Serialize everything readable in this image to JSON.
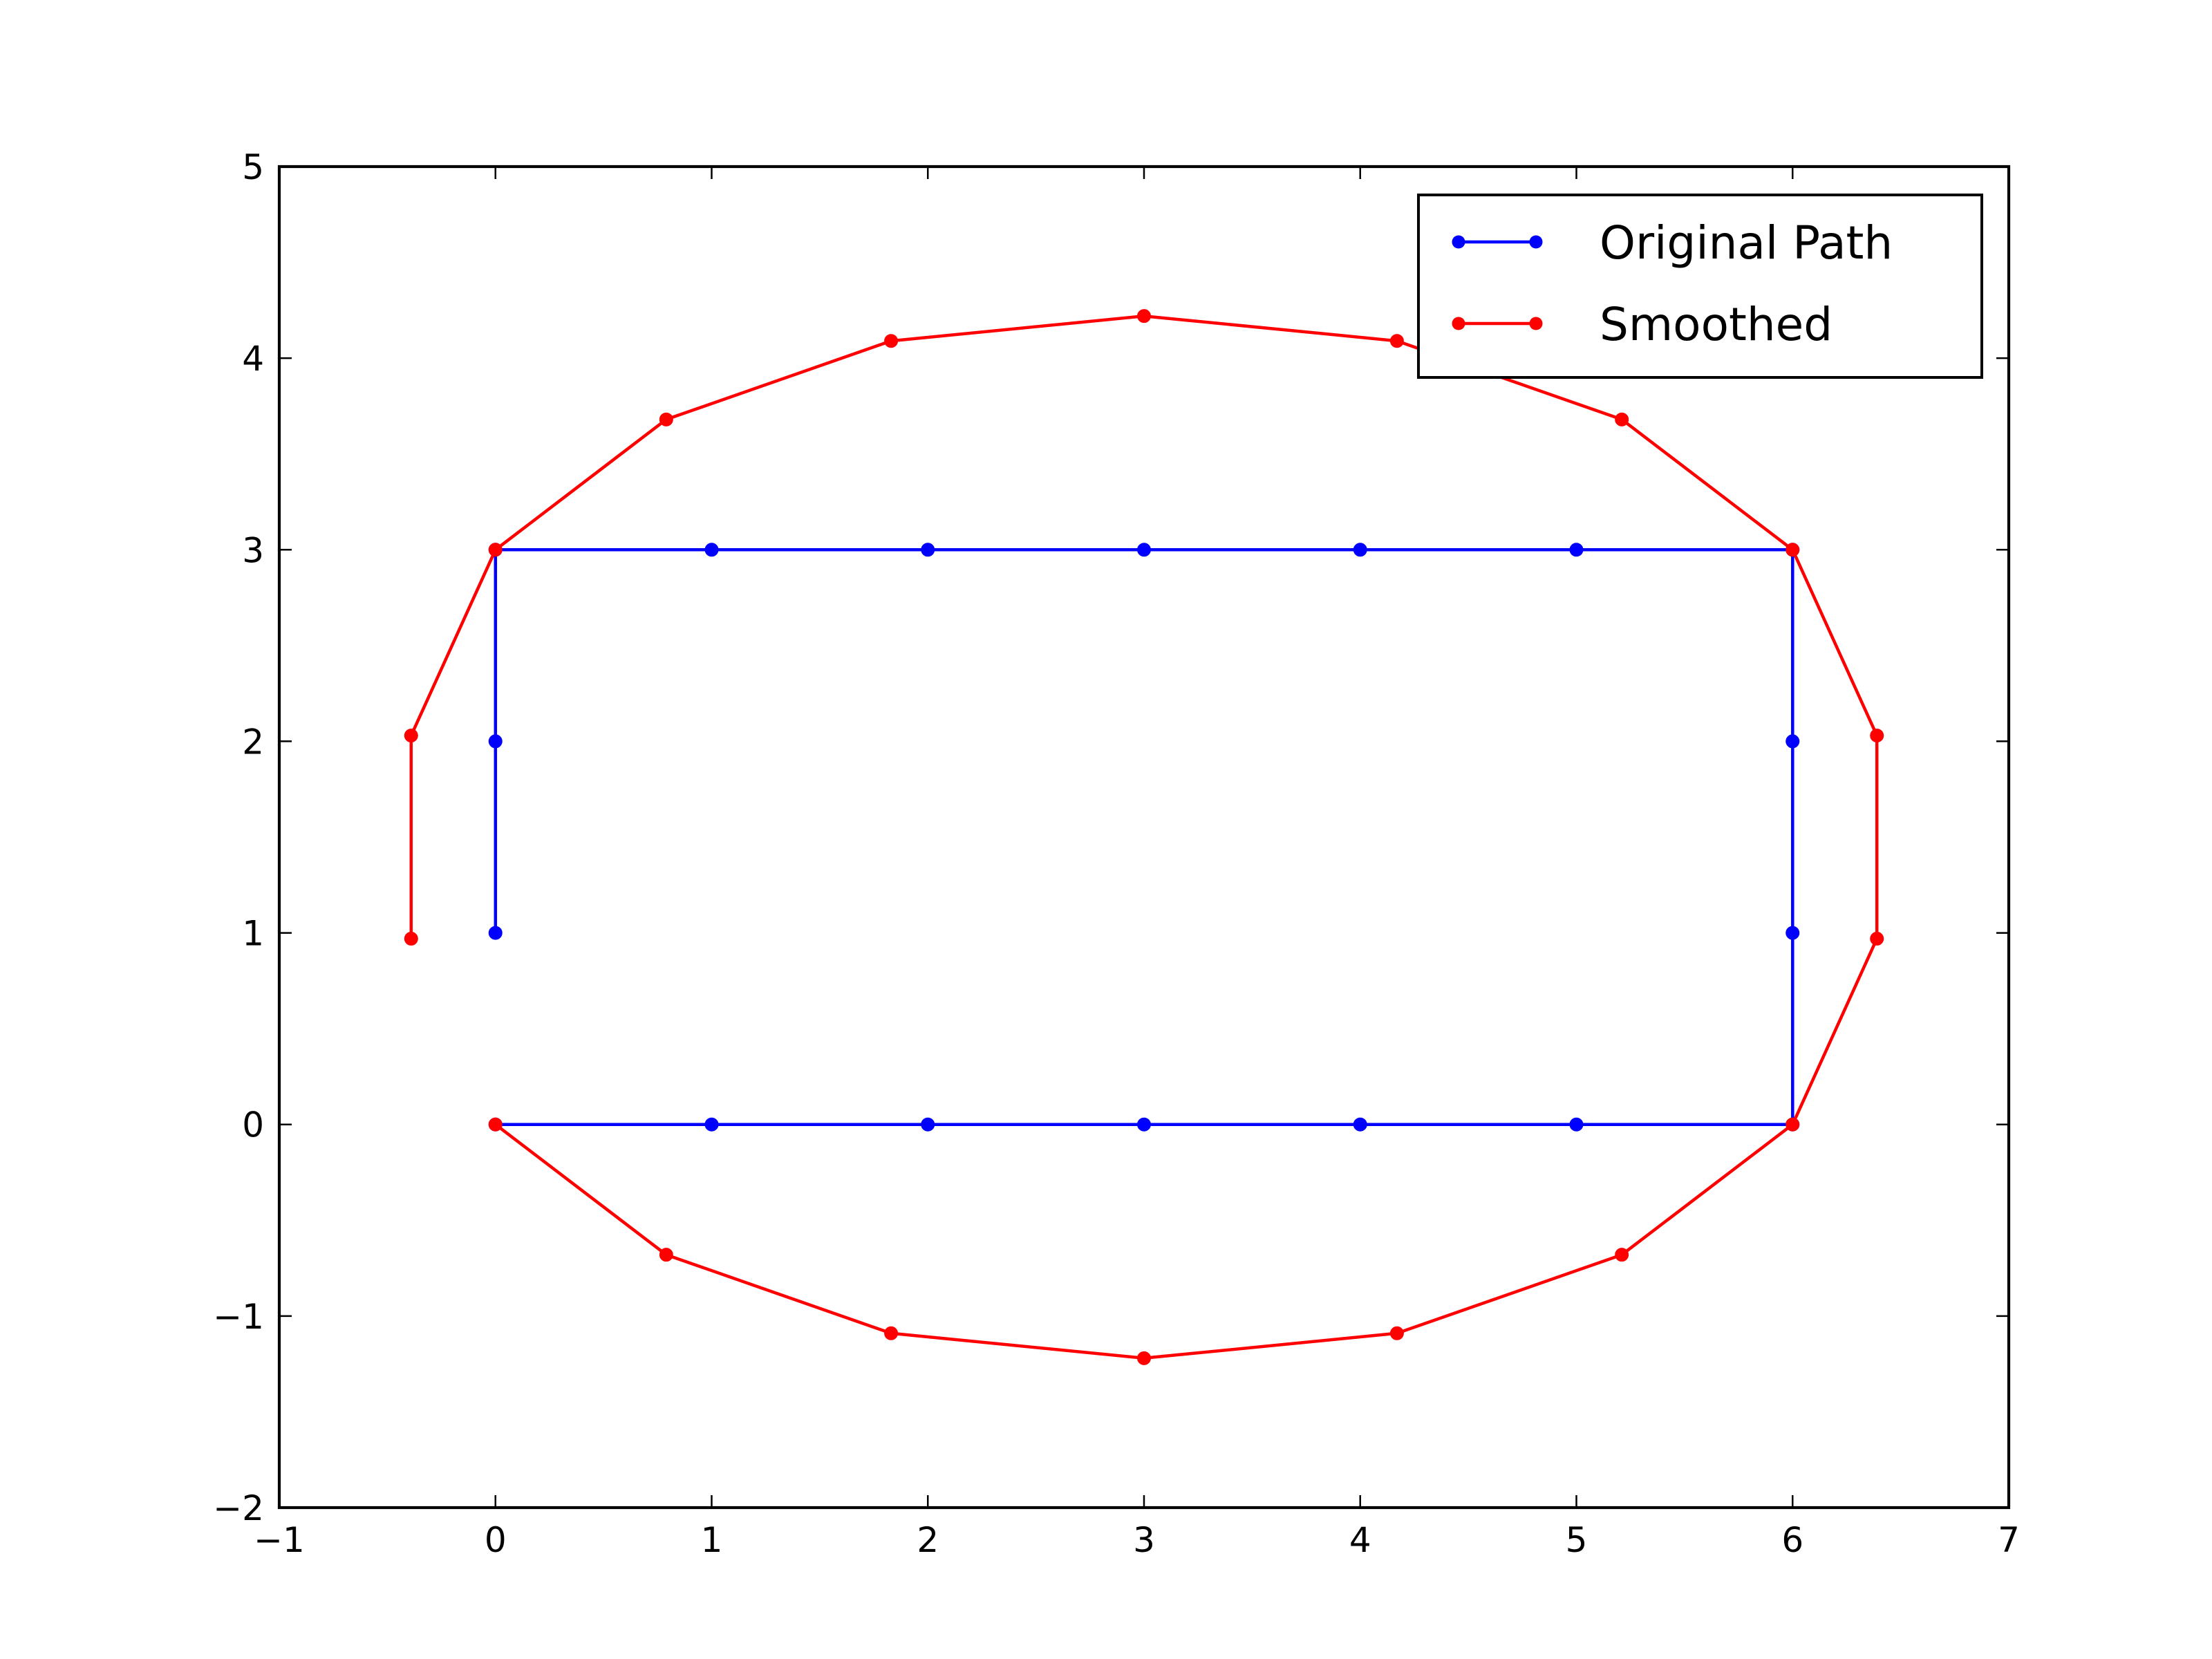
{
  "chart_data": {
    "type": "line",
    "title": "",
    "xlabel": "",
    "ylabel": "",
    "xlim": [
      -1,
      7
    ],
    "ylim": [
      -2,
      5
    ],
    "grid": false,
    "legend_position": "top-right",
    "xticks": [
      -1,
      0,
      1,
      2,
      3,
      4,
      5,
      6,
      7
    ],
    "yticks": [
      -2,
      -1,
      0,
      1,
      2,
      3,
      4,
      5
    ],
    "xtick_labels": [
      "−1",
      "0",
      "1",
      "2",
      "3",
      "4",
      "5",
      "6",
      "7"
    ],
    "ytick_labels": [
      "−2",
      "−1",
      "0",
      "1",
      "2",
      "3",
      "4",
      "5"
    ],
    "series": [
      {
        "name": "Original Path",
        "color": "#0000ff",
        "marker": "dot",
        "x": [
          0,
          1,
          2,
          3,
          4,
          5,
          6,
          6,
          6,
          6,
          5,
          4,
          3,
          2,
          1,
          0,
          0,
          0
        ],
        "y": [
          0,
          0,
          0,
          0,
          0,
          0,
          0,
          1,
          2,
          3,
          3,
          3,
          3,
          3,
          3,
          3,
          2,
          1
        ]
      },
      {
        "name": "Smoothed",
        "color": "#ff0000",
        "marker": "dot",
        "x": [
          0,
          0.79,
          1.83,
          3.0,
          4.17,
          5.21,
          6.0,
          6.39,
          6.39,
          6.0,
          5.21,
          4.17,
          3.0,
          1.83,
          0.79,
          0,
          -0.39,
          -0.39
        ],
        "y": [
          0,
          -0.68,
          -1.09,
          -1.22,
          -1.09,
          -0.68,
          0,
          0.97,
          2.03,
          3.0,
          3.68,
          4.09,
          4.22,
          4.09,
          3.68,
          3.0,
          2.03,
          0.97
        ]
      }
    ]
  }
}
